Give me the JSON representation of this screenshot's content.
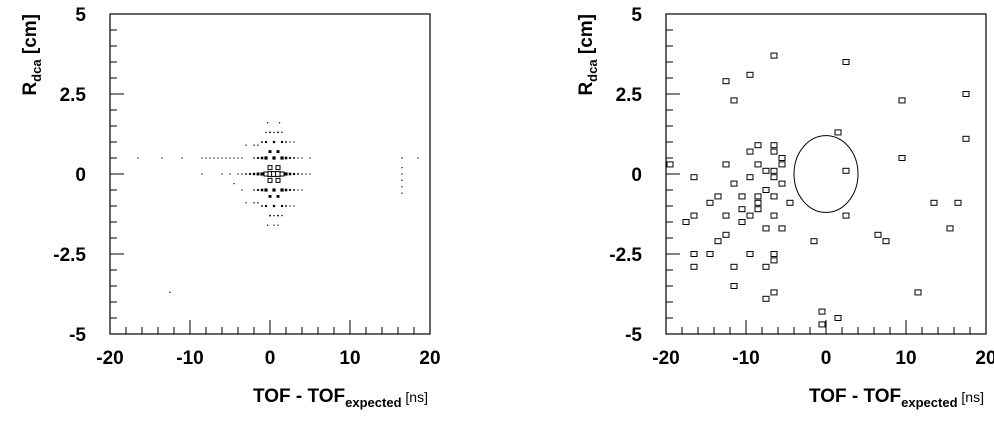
{
  "chart_data": [
    {
      "type": "scatter",
      "title": "",
      "xlabel": {
        "main": "TOF - TOF",
        "sub": "expected",
        "unit": " [ns]"
      },
      "ylabel": {
        "main": "R",
        "sub": "dca",
        "unit": " [cm]"
      },
      "xlim": [
        -20,
        20
      ],
      "ylim": [
        -5,
        5
      ],
      "xticks": [
        -20,
        -10,
        0,
        10,
        20
      ],
      "xtick_labels": [
        "-20",
        "-10",
        "0",
        "10",
        "20"
      ],
      "yticks": [
        -5,
        -2.5,
        0,
        2.5,
        5
      ],
      "ytick_labels": [
        "-5",
        "-2.5",
        "0",
        "2.5",
        "5"
      ],
      "grid": false,
      "marker": "box-histogram",
      "description_of_marks": "2D histogram drawn as boxes whose size scales with bin content",
      "points": [
        {
          "x": 0.0,
          "y": 0.0,
          "w": 3
        },
        {
          "x": 0.5,
          "y": 0.0,
          "w": 3
        },
        {
          "x": 1.0,
          "y": 0.0,
          "w": 3
        },
        {
          "x": -0.5,
          "y": 0.0,
          "w": 2.5
        },
        {
          "x": 0.0,
          "y": 0.2,
          "w": 2.5
        },
        {
          "x": 0.0,
          "y": -0.2,
          "w": 2.5
        },
        {
          "x": 1.0,
          "y": 0.2,
          "w": 2.5
        },
        {
          "x": 1.0,
          "y": -0.2,
          "w": 2.5
        },
        {
          "x": 1.5,
          "y": 0.0,
          "w": 2.5
        },
        {
          "x": -1.0,
          "y": 0.0,
          "w": 2
        },
        {
          "x": 0.5,
          "y": 0.5,
          "w": 2
        },
        {
          "x": 0.5,
          "y": -0.5,
          "w": 2
        },
        {
          "x": -0.5,
          "y": 0.5,
          "w": 2
        },
        {
          "x": -0.5,
          "y": -0.5,
          "w": 2
        },
        {
          "x": 1.5,
          "y": 0.5,
          "w": 2
        },
        {
          "x": 1.5,
          "y": -0.5,
          "w": 2
        },
        {
          "x": 2.0,
          "y": 0.0,
          "w": 2
        },
        {
          "x": -1.5,
          "y": 0.0,
          "w": 1.8
        },
        {
          "x": 0.0,
          "y": 0.7,
          "w": 1.8
        },
        {
          "x": 0.0,
          "y": -0.7,
          "w": 1.8
        },
        {
          "x": 1.0,
          "y": 0.7,
          "w": 1.8
        },
        {
          "x": 1.0,
          "y": -0.7,
          "w": 1.8
        },
        {
          "x": -1.0,
          "y": 0.5,
          "w": 1.6
        },
        {
          "x": -1.0,
          "y": -0.5,
          "w": 1.6
        },
        {
          "x": 2.0,
          "y": 0.5,
          "w": 1.6
        },
        {
          "x": 2.0,
          "y": -0.5,
          "w": 1.6
        },
        {
          "x": 2.5,
          "y": 0.0,
          "w": 1.6
        },
        {
          "x": -2.0,
          "y": 0.0,
          "w": 1.5
        },
        {
          "x": 0.5,
          "y": 1.0,
          "w": 1.4
        },
        {
          "x": 0.5,
          "y": -1.0,
          "w": 1.4
        },
        {
          "x": -0.5,
          "y": 1.0,
          "w": 1.3
        },
        {
          "x": -0.5,
          "y": -1.0,
          "w": 1.3
        },
        {
          "x": 1.5,
          "y": 1.0,
          "w": 1.3
        },
        {
          "x": 1.5,
          "y": -1.0,
          "w": 1.3
        },
        {
          "x": 3.0,
          "y": 0.0,
          "w": 1.3
        },
        {
          "x": -2.5,
          "y": 0.0,
          "w": 1.2
        },
        {
          "x": -1.5,
          "y": 0.5,
          "w": 1.2
        },
        {
          "x": -1.5,
          "y": -0.5,
          "w": 1.2
        },
        {
          "x": 2.5,
          "y": 0.5,
          "w": 1.2
        },
        {
          "x": 2.5,
          "y": -0.5,
          "w": 1.2
        },
        {
          "x": -1.0,
          "y": 1.0,
          "w": 1.0
        },
        {
          "x": -1.0,
          "y": -1.0,
          "w": 1.0
        },
        {
          "x": 2.0,
          "y": 1.0,
          "w": 1.0
        },
        {
          "x": 2.0,
          "y": -1.0,
          "w": 1.0
        },
        {
          "x": 0.0,
          "y": 1.3,
          "w": 1.0
        },
        {
          "x": 0.0,
          "y": -1.3,
          "w": 1.0
        },
        {
          "x": 1.0,
          "y": 1.3,
          "w": 1.0
        },
        {
          "x": 1.0,
          "y": -1.3,
          "w": 1.0
        },
        {
          "x": 3.0,
          "y": 0.5,
          "w": 1.0
        },
        {
          "x": 3.0,
          "y": -0.5,
          "w": 1.0
        },
        {
          "x": -3.0,
          "y": 0.0,
          "w": 1.0
        },
        {
          "x": 3.5,
          "y": 0.0,
          "w": 1.0
        },
        {
          "x": -2.0,
          "y": 0.5,
          "w": 0.9
        },
        {
          "x": -2.0,
          "y": -0.5,
          "w": 0.9
        },
        {
          "x": -2.0,
          "y": 0.9,
          "w": 0.8
        },
        {
          "x": -2.0,
          "y": -0.9,
          "w": 0.8
        },
        {
          "x": -1.5,
          "y": 0.9,
          "w": 0.8
        },
        {
          "x": -1.5,
          "y": -0.9,
          "w": 0.8
        },
        {
          "x": 2.5,
          "y": 1.0,
          "w": 0.8
        },
        {
          "x": 2.5,
          "y": -1.0,
          "w": 0.8
        },
        {
          "x": -0.5,
          "y": 1.3,
          "w": 0.8
        },
        {
          "x": 0.5,
          "y": 1.3,
          "w": 0.8
        },
        {
          "x": 0.5,
          "y": -1.3,
          "w": 0.8
        },
        {
          "x": 1.5,
          "y": 1.3,
          "w": 0.8
        },
        {
          "x": 1.5,
          "y": -1.3,
          "w": 0.8
        },
        {
          "x": 3.5,
          "y": 0.5,
          "w": 0.8
        },
        {
          "x": 3.5,
          "y": -0.5,
          "w": 0.8
        },
        {
          "x": 4.0,
          "y": 0.0,
          "w": 0.8
        },
        {
          "x": 4.0,
          "y": 0.5,
          "w": 0.6
        },
        {
          "x": 4.0,
          "y": -0.5,
          "w": 0.6
        },
        {
          "x": 4.5,
          "y": 0.0,
          "w": 0.6
        },
        {
          "x": 5.0,
          "y": 0.5,
          "w": 0.5
        },
        {
          "x": 5.0,
          "y": 0.0,
          "w": 0.5
        },
        {
          "x": -3.5,
          "y": 0.5,
          "w": 0.6
        },
        {
          "x": -3.5,
          "y": 0.0,
          "w": 0.6
        },
        {
          "x": -3.5,
          "y": -0.5,
          "w": 0.5
        },
        {
          "x": -3.0,
          "y": 0.9,
          "w": 0.6
        },
        {
          "x": -3.0,
          "y": -0.9,
          "w": 0.6
        },
        {
          "x": -4.0,
          "y": 0.5,
          "w": 0.5
        },
        {
          "x": -4.0,
          "y": 0.0,
          "w": 0.5
        },
        {
          "x": -4.5,
          "y": 0.5,
          "w": 0.4
        },
        {
          "x": -4.5,
          "y": -0.3,
          "w": 0.4
        },
        {
          "x": -0.3,
          "y": 1.6,
          "w": 0.5
        },
        {
          "x": 1.2,
          "y": 1.6,
          "w": 0.5
        },
        {
          "x": 0.5,
          "y": -1.6,
          "w": 0.4
        },
        {
          "x": -0.3,
          "y": -1.6,
          "w": 0.4
        },
        {
          "x": 1.0,
          "y": -1.6,
          "w": 0.4
        },
        {
          "x": 3.0,
          "y": 1.0,
          "w": 0.4
        },
        {
          "x": 3.0,
          "y": -1.0,
          "w": 0.4
        },
        {
          "x": -5.0,
          "y": 0.5,
          "w": 0.4
        },
        {
          "x": -5.0,
          "y": 0.0,
          "w": 0.4
        },
        {
          "x": -5.5,
          "y": 0.5,
          "w": 0.4
        },
        {
          "x": -6.0,
          "y": 0.5,
          "w": 0.4
        },
        {
          "x": -6.0,
          "y": 0.0,
          "w": 0.4
        },
        {
          "x": -6.5,
          "y": 0.5,
          "w": 0.4
        },
        {
          "x": -7.0,
          "y": 0.5,
          "w": 0.4
        },
        {
          "x": -7.5,
          "y": 0.5,
          "w": 0.4
        },
        {
          "x": -8.0,
          "y": 0.5,
          "w": 0.4
        },
        {
          "x": -8.5,
          "y": 0.5,
          "w": 0.4
        },
        {
          "x": -8.5,
          "y": 0.0,
          "w": 0.4
        },
        {
          "x": -11.0,
          "y": 0.5,
          "w": 0.4
        },
        {
          "x": -13.5,
          "y": 0.5,
          "w": 0.4
        },
        {
          "x": -16.5,
          "y": 0.5,
          "w": 0.4
        },
        {
          "x": -12.5,
          "y": -3.7,
          "w": 0.4
        },
        {
          "x": 16.5,
          "y": 0.5,
          "w": 0.8
        },
        {
          "x": 16.5,
          "y": 0.2,
          "w": 0.4
        },
        {
          "x": 16.5,
          "y": 0.0,
          "w": 0.4
        },
        {
          "x": 16.5,
          "y": -0.2,
          "w": 0.4
        },
        {
          "x": 16.5,
          "y": -0.4,
          "w": 0.4
        },
        {
          "x": 16.5,
          "y": -0.6,
          "w": 0.4
        },
        {
          "x": 18.5,
          "y": 0.5,
          "w": 0.4
        }
      ]
    },
    {
      "type": "scatter",
      "title": "",
      "xlabel": {
        "main": "TOF - TOF",
        "sub": "expected",
        "unit": " [ns]"
      },
      "ylabel": {
        "main": "R",
        "sub": "dca",
        "unit": " [cm]"
      },
      "xlim": [
        -20,
        20
      ],
      "ylim": [
        -5,
        5
      ],
      "xticks": [
        -20,
        -10,
        0,
        10,
        20
      ],
      "xtick_labels": [
        "-20",
        "-10",
        "0",
        "10",
        "20"
      ],
      "yticks": [
        -5,
        -2.5,
        0,
        2.5,
        5
      ],
      "ytick_labels": [
        "-5",
        "-2.5",
        "0",
        "2.5",
        "5"
      ],
      "grid": false,
      "marker": "open-square",
      "ellipse": {
        "cx": 0.0,
        "cy": 0.0,
        "rx": 4.0,
        "ry": 1.2
      },
      "points": [
        {
          "x": -6.5,
          "y": 3.7
        },
        {
          "x": 2.5,
          "y": 3.5
        },
        {
          "x": -9.5,
          "y": 3.1
        },
        {
          "x": -12.5,
          "y": 2.9
        },
        {
          "x": -11.5,
          "y": 2.3
        },
        {
          "x": 17.5,
          "y": 2.5
        },
        {
          "x": 9.5,
          "y": 2.3
        },
        {
          "x": 1.5,
          "y": 1.3
        },
        {
          "x": 17.5,
          "y": 1.1
        },
        {
          "x": -8.5,
          "y": 0.9
        },
        {
          "x": -6.5,
          "y": 0.9
        },
        {
          "x": -9.5,
          "y": 0.7
        },
        {
          "x": -6.5,
          "y": 0.7
        },
        {
          "x": -5.5,
          "y": 0.5
        },
        {
          "x": 9.5,
          "y": 0.5
        },
        {
          "x": -12.5,
          "y": 0.3
        },
        {
          "x": -8.5,
          "y": 0.3
        },
        {
          "x": -5.5,
          "y": 0.3
        },
        {
          "x": -19.5,
          "y": 0.3
        },
        {
          "x": -7.5,
          "y": 0.1
        },
        {
          "x": -6.5,
          "y": 0.1
        },
        {
          "x": 2.5,
          "y": 0.1
        },
        {
          "x": -16.5,
          "y": -0.1
        },
        {
          "x": -9.5,
          "y": -0.1
        },
        {
          "x": -6.5,
          "y": -0.1
        },
        {
          "x": -11.5,
          "y": -0.3
        },
        {
          "x": -5.5,
          "y": -0.3
        },
        {
          "x": -7.5,
          "y": -0.5
        },
        {
          "x": -13.5,
          "y": -0.7
        },
        {
          "x": -10.5,
          "y": -0.7
        },
        {
          "x": -8.5,
          "y": -0.7
        },
        {
          "x": -6.5,
          "y": -0.7
        },
        {
          "x": -8.5,
          "y": -0.9
        },
        {
          "x": -14.5,
          "y": -0.9
        },
        {
          "x": -4.5,
          "y": -0.9
        },
        {
          "x": 13.5,
          "y": -0.9
        },
        {
          "x": 16.5,
          "y": -0.9
        },
        {
          "x": -10.5,
          "y": -1.1
        },
        {
          "x": -8.5,
          "y": -1.1
        },
        {
          "x": -16.5,
          "y": -1.3
        },
        {
          "x": -12.5,
          "y": -1.3
        },
        {
          "x": -9.5,
          "y": -1.3
        },
        {
          "x": -6.5,
          "y": -1.3
        },
        {
          "x": 2.5,
          "y": -1.3
        },
        {
          "x": -17.5,
          "y": -1.5
        },
        {
          "x": -10.5,
          "y": -1.5
        },
        {
          "x": -7.5,
          "y": -1.7
        },
        {
          "x": -5.5,
          "y": -1.7
        },
        {
          "x": 15.5,
          "y": -1.7
        },
        {
          "x": -12.5,
          "y": -1.9
        },
        {
          "x": 6.5,
          "y": -1.9
        },
        {
          "x": -13.5,
          "y": -2.1
        },
        {
          "x": -1.5,
          "y": -2.1
        },
        {
          "x": 7.5,
          "y": -2.1
        },
        {
          "x": -16.5,
          "y": -2.5
        },
        {
          "x": -14.5,
          "y": -2.5
        },
        {
          "x": -9.5,
          "y": -2.5
        },
        {
          "x": -6.5,
          "y": -2.5
        },
        {
          "x": -16.5,
          "y": -2.9
        },
        {
          "x": -11.5,
          "y": -2.9
        },
        {
          "x": -7.5,
          "y": -2.9
        },
        {
          "x": -6.5,
          "y": -2.7
        },
        {
          "x": -11.5,
          "y": -3.5
        },
        {
          "x": -6.5,
          "y": -3.7
        },
        {
          "x": -7.5,
          "y": -3.9
        },
        {
          "x": 11.5,
          "y": -3.7
        },
        {
          "x": -0.5,
          "y": -4.3
        },
        {
          "x": 1.5,
          "y": -4.5
        },
        {
          "x": -0.5,
          "y": -4.7
        }
      ]
    }
  ]
}
